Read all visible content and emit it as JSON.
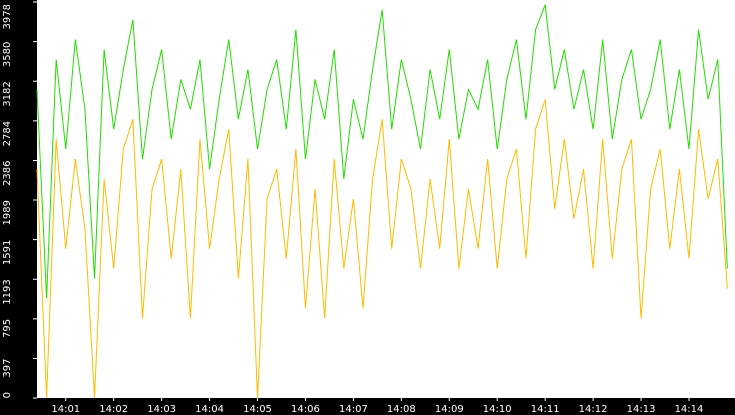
{
  "chart_data": {
    "type": "line",
    "x": [
      0.4,
      0.6,
      0.8,
      1.0,
      1.2,
      1.4,
      1.6,
      1.8,
      2.0,
      2.2,
      2.4,
      2.6,
      2.8,
      3.0,
      3.2,
      3.4,
      3.6,
      3.8,
      4.0,
      4.2,
      4.4,
      4.6,
      4.8,
      5.0,
      5.2,
      5.4,
      5.6,
      5.8,
      6.0,
      6.2,
      6.4,
      6.6,
      6.8,
      7.0,
      7.2,
      7.4,
      7.6,
      7.8,
      8.0,
      8.2,
      8.4,
      8.6,
      8.8,
      9.0,
      9.2,
      9.4,
      9.6,
      9.8,
      10.0,
      10.2,
      10.4,
      10.6,
      10.8,
      11.0,
      11.2,
      11.4,
      11.6,
      11.8,
      12.0,
      12.2,
      12.4,
      12.6,
      12.8,
      13.0,
      13.2,
      13.4,
      13.6,
      13.8,
      14.0,
      14.2,
      14.4,
      14.6,
      14.8
    ],
    "series": [
      {
        "color": "#22dd00",
        "values": [
          3100,
          1000,
          3400,
          2500,
          3600,
          2900,
          1200,
          3500,
          2700,
          3300,
          3800,
          2400,
          3100,
          3500,
          2600,
          3200,
          2900,
          3400,
          2300,
          3000,
          3600,
          2800,
          3300,
          2500,
          3100,
          3400,
          2700,
          3700,
          2400,
          3200,
          2800,
          3500,
          2200,
          3000,
          2600,
          3300,
          3900,
          2700,
          3400,
          3000,
          2500,
          3300,
          2800,
          3500,
          2600,
          3100,
          2900,
          3400,
          2500,
          3200,
          3600,
          2800,
          3700,
          3950,
          3100,
          3500,
          2900,
          3300,
          2700,
          3600,
          2600,
          3200,
          3500,
          2800,
          3100,
          3600,
          2700,
          3300,
          2500,
          3700,
          3000,
          3400,
          1300
        ]
      },
      {
        "color": "#ffbb00",
        "values": [
          2300,
          0,
          2600,
          1500,
          2400,
          1700,
          0,
          2200,
          1300,
          2500,
          2800,
          800,
          2100,
          2400,
          1400,
          2300,
          800,
          2600,
          1500,
          2200,
          2700,
          1200,
          2400,
          0,
          2000,
          2300,
          1400,
          2500,
          900,
          2100,
          800,
          2400,
          1300,
          2000,
          900,
          2200,
          2800,
          1500,
          2400,
          2100,
          1300,
          2200,
          1500,
          2600,
          1300,
          2100,
          1500,
          2400,
          1300,
          2200,
          2500,
          1400,
          2700,
          3000,
          1900,
          2600,
          1800,
          2300,
          1300,
          2600,
          1400,
          2300,
          2600,
          800,
          2100,
          2500,
          1500,
          2300,
          1400,
          2700,
          2000,
          2400,
          1100
        ]
      }
    ],
    "xlim": [
      0.4,
      14.96
    ],
    "xticks": [
      {
        "value": 1,
        "label": "14:01"
      },
      {
        "value": 2,
        "label": "14:02"
      },
      {
        "value": 3,
        "label": "14:03"
      },
      {
        "value": 4,
        "label": "14:04"
      },
      {
        "value": 5,
        "label": "14:05"
      },
      {
        "value": 6,
        "label": "14:06"
      },
      {
        "value": 7,
        "label": "14:07"
      },
      {
        "value": 8,
        "label": "14:08"
      },
      {
        "value": 9,
        "label": "14:09"
      },
      {
        "value": 10,
        "label": "14:10"
      },
      {
        "value": 11,
        "label": "14:11"
      },
      {
        "value": 12,
        "label": "14:12"
      },
      {
        "value": 13,
        "label": "14:13"
      },
      {
        "value": 14,
        "label": "14:14"
      }
    ],
    "ylim": [
      0,
      3978
    ],
    "yticks": [
      0,
      397,
      795,
      1193,
      1591,
      1989,
      2386,
      2784,
      3182,
      3580,
      3978
    ]
  }
}
